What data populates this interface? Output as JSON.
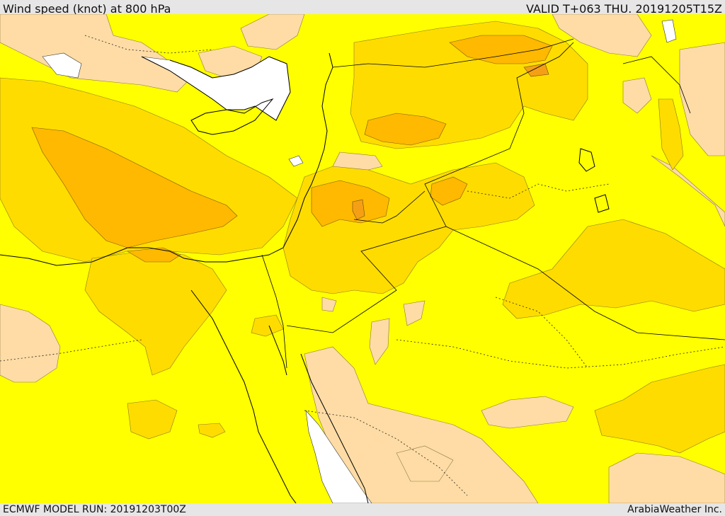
{
  "header": {
    "title": "Wind speed (knot) at 800 hPa",
    "valid_time": "VALID T+063 THU. 20191205T15Z"
  },
  "footer": {
    "model_run": "ECMWF MODEL RUN: 20191203T00Z",
    "credit": "ArabiaWeather Inc."
  },
  "colors": {
    "background_band": "#e6e6e6",
    "sea_no_data": "#ffffff",
    "level_low": "#ffdca5",
    "level_base": "#ffff00",
    "level_mid": "#ffdc00",
    "level_high": "#ffb900",
    "level_peak": "#f5a014",
    "boundary_line": "#000000"
  }
}
